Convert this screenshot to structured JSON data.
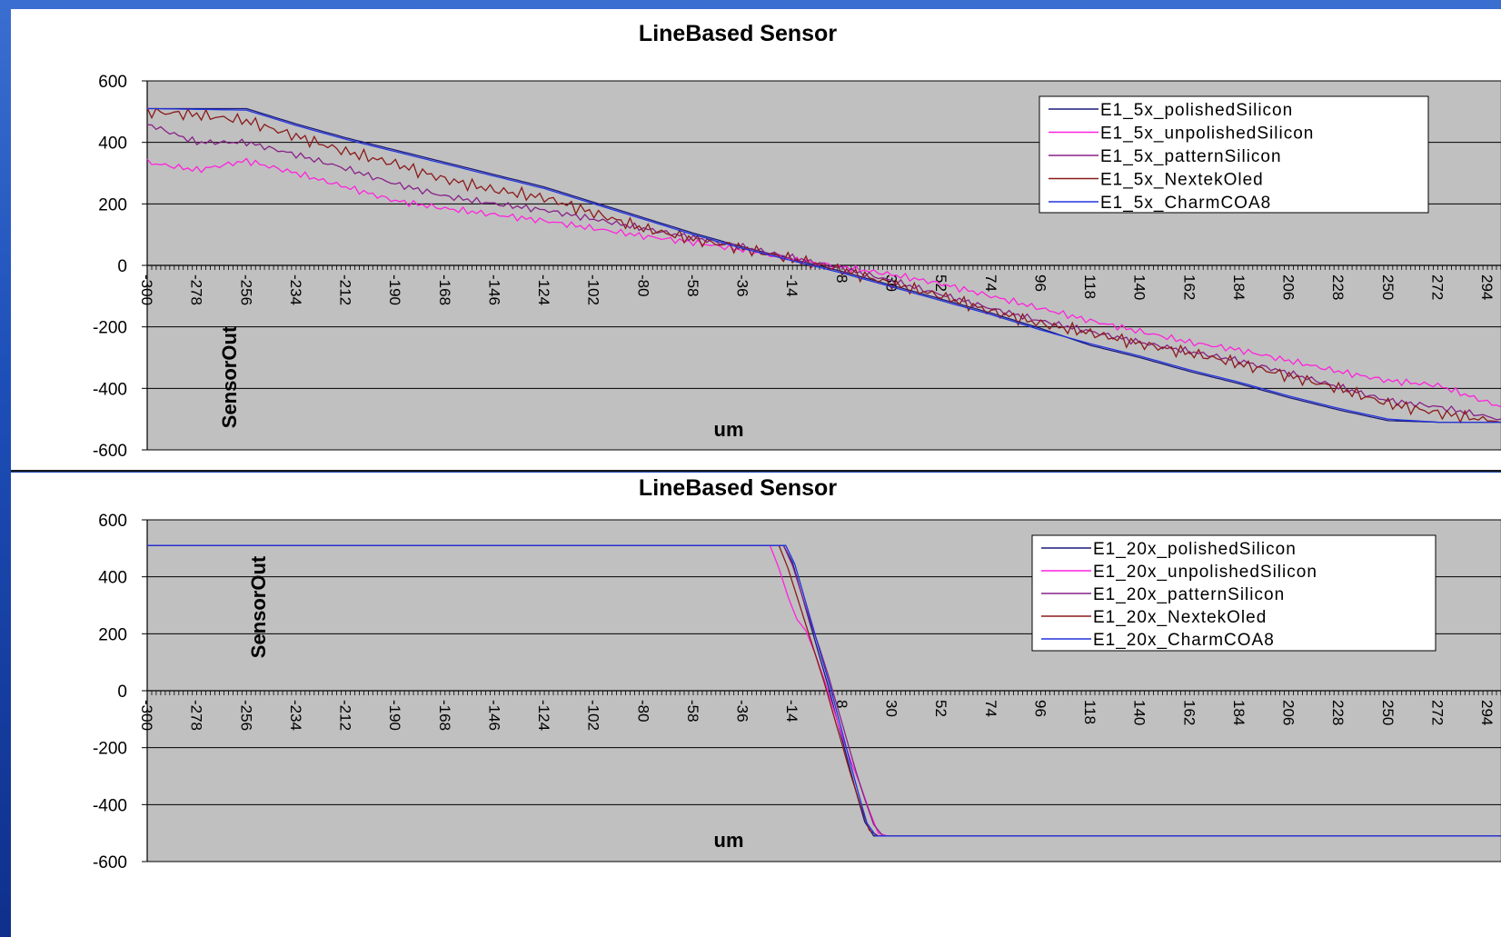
{
  "chart_data": [
    {
      "type": "line",
      "title": "LineBased Sensor",
      "xlabel": "um",
      "ylabel": "SensorOut",
      "ylim": [
        -600,
        600
      ],
      "yticks": [
        -600,
        -400,
        -200,
        0,
        200,
        400,
        600
      ],
      "xlim": [
        -300,
        300
      ],
      "xticks": [
        -300,
        -278,
        -256,
        -234,
        -212,
        -190,
        -168,
        -146,
        -124,
        -102,
        -80,
        -58,
        -36,
        -14,
        8,
        30,
        52,
        74,
        96,
        118,
        140,
        162,
        184,
        206,
        228,
        250,
        272,
        294
      ],
      "grid": true,
      "legend_position": "top-right",
      "series": [
        {
          "name": "E1_5x_polishedSilicon",
          "color": "#1a1a7a",
          "x": [
            -300,
            -256,
            -234,
            -212,
            -190,
            -168,
            -146,
            -124,
            -102,
            -80,
            -58,
            -36,
            -14,
            8,
            30,
            52,
            74,
            96,
            118,
            140,
            162,
            184,
            206,
            228,
            250,
            272,
            300
          ],
          "y": [
            510,
            510,
            460,
            415,
            375,
            335,
            295,
            255,
            205,
            155,
            105,
            60,
            20,
            -20,
            -65,
            -110,
            -155,
            -205,
            -260,
            -300,
            -345,
            -385,
            -430,
            -470,
            -505,
            -510,
            -510
          ]
        },
        {
          "name": "E1_5x_unpolishedSilicon",
          "color": "#ff22dd",
          "x": [
            -300,
            -278,
            -256,
            -234,
            -212,
            -190,
            -168,
            -146,
            -124,
            -102,
            -80,
            -58,
            -36,
            -14,
            8,
            30,
            52,
            74,
            96,
            118,
            140,
            162,
            184,
            206,
            228,
            250,
            272,
            300
          ],
          "y": [
            335,
            310,
            340,
            300,
            255,
            210,
            185,
            165,
            145,
            120,
            95,
            75,
            50,
            20,
            -5,
            -30,
            -60,
            -100,
            -140,
            -180,
            -215,
            -250,
            -275,
            -310,
            -345,
            -375,
            -390,
            -460
          ]
        },
        {
          "name": "E1_5x_patternSilicon",
          "color": "#882288",
          "x": [
            -300,
            -278,
            -256,
            -234,
            -212,
            -190,
            -168,
            -146,
            -124,
            -102,
            -80,
            -58,
            -36,
            -14,
            8,
            30,
            52,
            74,
            96,
            118,
            140,
            162,
            184,
            206,
            228,
            250,
            272,
            300
          ],
          "y": [
            460,
            400,
            400,
            360,
            315,
            265,
            225,
            200,
            180,
            150,
            120,
            90,
            60,
            25,
            -10,
            -50,
            -95,
            -140,
            -180,
            -215,
            -250,
            -280,
            -310,
            -350,
            -395,
            -440,
            -460,
            -500
          ]
        },
        {
          "name": "E1_5x_NextekOled",
          "color": "#8b1a1a",
          "x": [
            -300,
            -278,
            -256,
            -234,
            -212,
            -190,
            -168,
            -146,
            -124,
            -102,
            -80,
            -58,
            -36,
            -14,
            8,
            30,
            52,
            74,
            96,
            118,
            140,
            162,
            184,
            206,
            228,
            250,
            272,
            300
          ],
          "y": [
            500,
            490,
            470,
            420,
            370,
            330,
            280,
            245,
            220,
            170,
            120,
            85,
            55,
            20,
            -15,
            -60,
            -100,
            -150,
            -190,
            -220,
            -255,
            -285,
            -320,
            -360,
            -400,
            -450,
            -480,
            -510
          ]
        },
        {
          "name": "E1_5x_CharmCOA8",
          "color": "#2233dd",
          "x": [
            -300,
            -256,
            -234,
            -212,
            -190,
            -168,
            -146,
            -124,
            -102,
            -80,
            -58,
            -36,
            -14,
            8,
            30,
            52,
            74,
            96,
            118,
            140,
            162,
            184,
            206,
            228,
            250,
            272,
            300
          ],
          "y": [
            510,
            505,
            455,
            410,
            370,
            330,
            290,
            250,
            200,
            150,
            100,
            55,
            15,
            -25,
            -70,
            -115,
            -160,
            -210,
            -255,
            -295,
            -340,
            -380,
            -425,
            -465,
            -500,
            -510,
            -510
          ]
        }
      ]
    },
    {
      "type": "line",
      "title": "LineBased Sensor",
      "xlabel": "um",
      "ylabel": "SensorOut",
      "ylim": [
        -600,
        600
      ],
      "yticks": [
        -600,
        -400,
        -200,
        0,
        200,
        400,
        600
      ],
      "xlim": [
        -300,
        300
      ],
      "xticks": [
        -300,
        -278,
        -256,
        -234,
        -212,
        -190,
        -168,
        -146,
        -124,
        -102,
        -80,
        -58,
        -36,
        -14,
        8,
        30,
        52,
        74,
        96,
        118,
        140,
        162,
        184,
        206,
        228,
        250,
        272,
        294
      ],
      "grid": true,
      "legend_position": "top-right",
      "series": [
        {
          "name": "E1_20x_polishedSilicon",
          "color": "#1a1a7a",
          "x": [
            -300,
            -18,
            -14,
            -10,
            -6,
            -2,
            2,
            6,
            10,
            14,
            18,
            22,
            300
          ],
          "y": [
            510,
            510,
            450,
            340,
            230,
            120,
            10,
            -110,
            -230,
            -350,
            -460,
            -510,
            -510
          ]
        },
        {
          "name": "E1_20x_unpolishedSilicon",
          "color": "#ff22dd",
          "x": [
            -300,
            -24,
            -20,
            -16,
            -12,
            -8,
            -4,
            0,
            4,
            8,
            12,
            16,
            20,
            24,
            28,
            300
          ],
          "y": [
            510,
            510,
            430,
            330,
            250,
            210,
            130,
            40,
            -60,
            -160,
            -250,
            -330,
            -420,
            -500,
            -510,
            -510
          ]
        },
        {
          "name": "E1_20x_patternSilicon",
          "color": "#882288",
          "x": [
            -300,
            -18,
            -14,
            -10,
            -6,
            -2,
            2,
            6,
            10,
            14,
            18,
            22,
            26,
            300
          ],
          "y": [
            510,
            510,
            440,
            340,
            240,
            150,
            50,
            -60,
            -170,
            -280,
            -380,
            -470,
            -510,
            -510
          ]
        },
        {
          "name": "E1_20x_NextekOled",
          "color": "#8b1a1a",
          "x": [
            -300,
            -20,
            -16,
            -12,
            -8,
            -4,
            0,
            4,
            8,
            12,
            16,
            20,
            24,
            300
          ],
          "y": [
            510,
            510,
            430,
            330,
            230,
            130,
            30,
            -80,
            -190,
            -300,
            -400,
            -490,
            -510,
            -510
          ]
        },
        {
          "name": "E1_20x_CharmCOA8",
          "color": "#2233dd",
          "x": [
            -300,
            -17,
            -13,
            -9,
            -5,
            -1,
            3,
            7,
            11,
            15,
            19,
            23,
            300
          ],
          "y": [
            510,
            510,
            445,
            335,
            225,
            115,
            5,
            -115,
            -235,
            -355,
            -465,
            -510,
            -510
          ]
        }
      ]
    }
  ]
}
